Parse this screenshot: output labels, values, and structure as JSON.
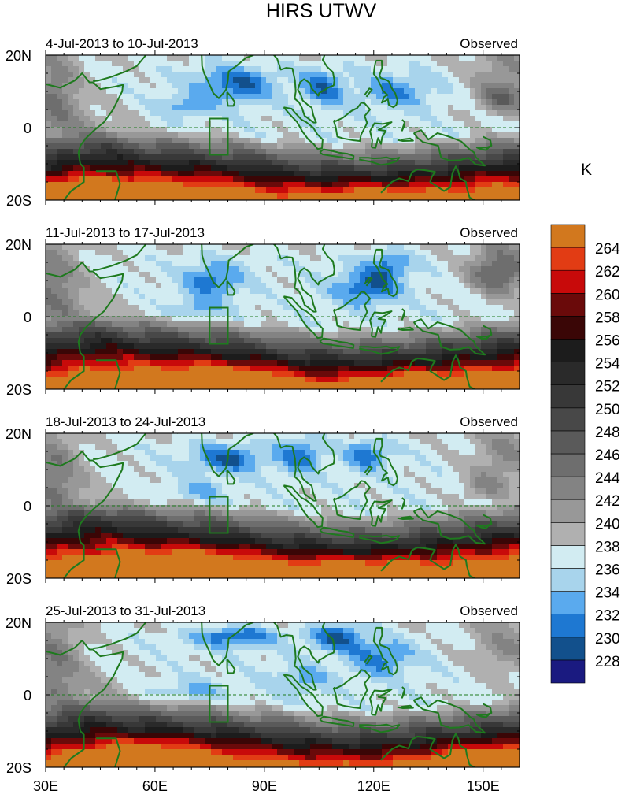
{
  "title": "HIRS UTWV",
  "colorbar_unit": "K",
  "chart_data": {
    "type": "heatmap",
    "xlim": [
      30,
      160
    ],
    "ylim": [
      -20,
      20
    ],
    "x_ticks": [
      "30E",
      "60E",
      "90E",
      "120E",
      "150E"
    ],
    "x_tick_values": [
      30,
      60,
      90,
      120,
      150
    ],
    "y_ticks": [
      "20N",
      "0",
      "20S"
    ],
    "y_tick_values": [
      20,
      0,
      -20
    ],
    "panels": [
      {
        "date_range": "4-Jul-2013 to 10-Jul-2013",
        "label": "Observed"
      },
      {
        "date_range": "11-Jul-2013 to 17-Jul-2013",
        "label": "Observed"
      },
      {
        "date_range": "18-Jul-2013 to 24-Jul-2013",
        "label": "Observed"
      },
      {
        "date_range": "25-Jul-2013 to 31-Jul-2013",
        "label": "Observed"
      }
    ],
    "colorbar": {
      "levels": [
        228,
        230,
        232,
        234,
        236,
        238,
        240,
        242,
        244,
        246,
        248,
        250,
        252,
        254,
        256,
        258,
        260,
        262,
        264
      ],
      "colors": [
        "#1a1a80",
        "#12508c",
        "#1e78d2",
        "#5aaaee",
        "#a8d4ec",
        "#d2ecf2",
        "#b0b0b0",
        "#989898",
        "#838383",
        "#6e6e6e",
        "#5a5a5a",
        "#484848",
        "#383838",
        "#2a2a2a",
        "#1c1c1c",
        "#3a0606",
        "#6a0a0a",
        "#c80a0a",
        "#e23c14",
        "#d2781e"
      ]
    },
    "box_region": {
      "lon": [
        75,
        80
      ],
      "lat": [
        -7.5,
        2.5
      ]
    }
  }
}
